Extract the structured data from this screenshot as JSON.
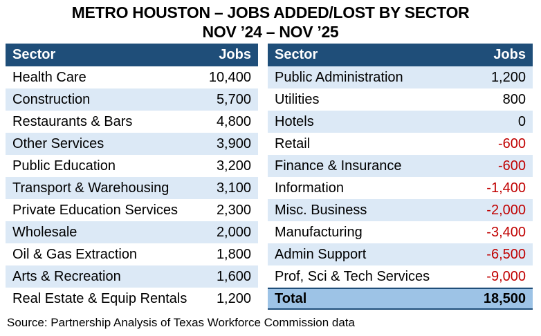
{
  "title": {
    "line1": "METRO HOUSTON – JOBS ADDED/LOST BY SECTOR",
    "line2": "NOV ’24 – NOV ’25"
  },
  "table": {
    "left": {
      "header": {
        "sector": "Sector",
        "jobs": "Jobs"
      },
      "rows": [
        {
          "sector": "Health Care",
          "jobs": "10,400"
        },
        {
          "sector": "Construction",
          "jobs": "5,700"
        },
        {
          "sector": "Restaurants & Bars",
          "jobs": "4,800"
        },
        {
          "sector": "Other Services",
          "jobs": "3,900"
        },
        {
          "sector": "Public Education",
          "jobs": "3,200"
        },
        {
          "sector": "Transport & Warehousing",
          "jobs": "3,100"
        },
        {
          "sector": "Private Education Services",
          "jobs": "2,300"
        },
        {
          "sector": "Wholesale",
          "jobs": "2,000"
        },
        {
          "sector": "Oil & Gas Extraction",
          "jobs": "1,800"
        },
        {
          "sector": "Arts & Recreation",
          "jobs": "1,600"
        },
        {
          "sector": "Real Estate & Equip Rentals",
          "jobs": "1,200"
        }
      ]
    },
    "right": {
      "header": {
        "sector": "Sector",
        "jobs": "Jobs"
      },
      "rows": [
        {
          "sector": "Public Administration",
          "jobs": "1,200"
        },
        {
          "sector": "Utilities",
          "jobs": "800"
        },
        {
          "sector": "Hotels",
          "jobs": "0"
        },
        {
          "sector": "Retail",
          "jobs": "-600"
        },
        {
          "sector": "Finance & Insurance",
          "jobs": "-600"
        },
        {
          "sector": "Information",
          "jobs": "-1,400"
        },
        {
          "sector": "Misc. Business",
          "jobs": "-2,000"
        },
        {
          "sector": "Manufacturing",
          "jobs": "-3,400"
        },
        {
          "sector": "Admin Support",
          "jobs": "-6,500"
        },
        {
          "sector": "Prof, Sci & Tech Services",
          "jobs": "-9,000"
        }
      ],
      "total": {
        "label": "Total",
        "value": "18,500"
      }
    }
  },
  "source": "Source: Partnership Analysis of Texas Workforce Commission data",
  "colors": {
    "header_bg": "#1F4E79",
    "band_bg": "#DCE9F6",
    "total_bg": "#9DC3E6",
    "negative": "#C00000"
  },
  "chart_data": {
    "type": "table",
    "title": "METRO HOUSTON – JOBS ADDED/LOST BY SECTOR NOV ’24 – NOV ’25",
    "columns": [
      "Sector",
      "Jobs"
    ],
    "rows": [
      [
        "Health Care",
        10400
      ],
      [
        "Construction",
        5700
      ],
      [
        "Restaurants & Bars",
        4800
      ],
      [
        "Other Services",
        3900
      ],
      [
        "Public Education",
        3200
      ],
      [
        "Transport & Warehousing",
        3100
      ],
      [
        "Private Education Services",
        2300
      ],
      [
        "Wholesale",
        2000
      ],
      [
        "Oil & Gas Extraction",
        1800
      ],
      [
        "Arts & Recreation",
        1600
      ],
      [
        "Real Estate & Equip Rentals",
        1200
      ],
      [
        "Public Administration",
        1200
      ],
      [
        "Utilities",
        800
      ],
      [
        "Hotels",
        0
      ],
      [
        "Retail",
        -600
      ],
      [
        "Finance & Insurance",
        -600
      ],
      [
        "Information",
        -1400
      ],
      [
        "Misc. Business",
        -2000
      ],
      [
        "Manufacturing",
        -3400
      ],
      [
        "Admin Support",
        -6500
      ],
      [
        "Prof, Sci & Tech Services",
        -9000
      ],
      [
        "Total",
        18500
      ]
    ],
    "notes": "Source: Partnership Analysis of Texas Workforce Commission data"
  }
}
